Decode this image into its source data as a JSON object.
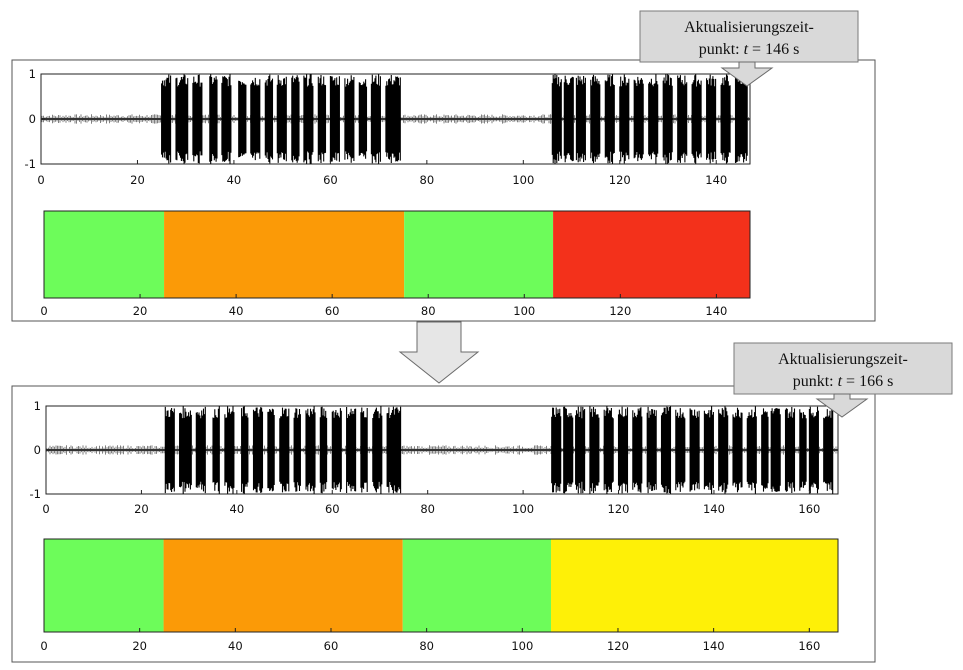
{
  "chart_data": [
    {
      "type": "line",
      "title": "",
      "xlabel": "",
      "ylabel": "",
      "xlim": [
        0,
        147
      ],
      "ylim": [
        -1,
        1
      ],
      "xticks": [
        "0",
        "20",
        "40",
        "60",
        "80",
        "100",
        "120",
        "140"
      ],
      "yticks": [
        "1",
        "0",
        "-1"
      ],
      "signal_end": 147,
      "bursts": [
        [
          25,
          27
        ],
        [
          28,
          30.5
        ],
        [
          31.5,
          33.5
        ],
        [
          35,
          36.5
        ],
        [
          37.5,
          39.5
        ],
        [
          41,
          42.5
        ],
        [
          43.5,
          45.5
        ],
        [
          46.5,
          48
        ],
        [
          49,
          51
        ],
        [
          52,
          53.5
        ],
        [
          54.5,
          56.5
        ],
        [
          57.5,
          59
        ],
        [
          60,
          62
        ],
        [
          63,
          65
        ],
        [
          66,
          67.5
        ],
        [
          68.5,
          70.5
        ],
        [
          71.5,
          74.5
        ],
        [
          106,
          108
        ],
        [
          108.5,
          110.5
        ],
        [
          111,
          113
        ],
        [
          114,
          116
        ],
        [
          117,
          119
        ],
        [
          120,
          122
        ],
        [
          123,
          125
        ],
        [
          126,
          128
        ],
        [
          129,
          131
        ],
        [
          132,
          134
        ],
        [
          135,
          137
        ],
        [
          138,
          140
        ],
        [
          141,
          143
        ],
        [
          144,
          146.5
        ]
      ],
      "colors": {
        "signal": "#000000",
        "noise": "#808080"
      }
    },
    {
      "type": "bar",
      "title": "",
      "xlabel": "",
      "ylabel": "",
      "xlim": [
        0,
        147
      ],
      "xticks": [
        "0",
        "20",
        "40",
        "60",
        "80",
        "100",
        "120",
        "140"
      ],
      "segments": [
        {
          "start": 0,
          "end": 25,
          "color": "#6dfc5a"
        },
        {
          "start": 25,
          "end": 75,
          "color": "#fb9a07"
        },
        {
          "start": 75,
          "end": 106,
          "color": "#6dfc5a"
        },
        {
          "start": 106,
          "end": 147,
          "color": "#f3311b"
        }
      ]
    },
    {
      "type": "line",
      "title": "",
      "xlabel": "",
      "ylabel": "",
      "xlim": [
        0,
        166
      ],
      "ylim": [
        -1,
        1
      ],
      "xticks": [
        "0",
        "20",
        "40",
        "60",
        "80",
        "100",
        "120",
        "140",
        "160"
      ],
      "yticks": [
        "1",
        "0",
        "-1"
      ],
      "signal_end": 166,
      "bursts": [
        [
          25,
          27
        ],
        [
          28,
          30.5
        ],
        [
          31.5,
          33.5
        ],
        [
          35,
          36.5
        ],
        [
          37.5,
          39.5
        ],
        [
          41,
          42.5
        ],
        [
          43.5,
          45.5
        ],
        [
          46.5,
          48
        ],
        [
          49,
          51
        ],
        [
          52,
          53.5
        ],
        [
          54.5,
          56.5
        ],
        [
          57.5,
          59
        ],
        [
          60,
          62
        ],
        [
          63,
          65
        ],
        [
          66,
          67.5
        ],
        [
          68.5,
          70.5
        ],
        [
          71.5,
          74.5
        ],
        [
          106,
          108
        ],
        [
          108.5,
          110.5
        ],
        [
          111,
          113
        ],
        [
          114,
          116
        ],
        [
          117,
          119
        ],
        [
          120,
          122
        ],
        [
          123,
          125
        ],
        [
          126,
          128
        ],
        [
          129,
          131
        ],
        [
          132,
          134
        ],
        [
          135,
          137
        ],
        [
          138,
          140
        ],
        [
          141,
          143
        ],
        [
          144,
          146
        ],
        [
          147,
          149
        ],
        [
          150,
          151.5
        ],
        [
          152,
          154
        ],
        [
          155,
          157
        ],
        [
          158,
          159.5
        ],
        [
          160,
          162
        ],
        [
          163,
          165
        ]
      ],
      "colors": {
        "signal": "#000000",
        "noise": "#808080"
      }
    },
    {
      "type": "bar",
      "title": "",
      "xlabel": "",
      "ylabel": "",
      "xlim": [
        0,
        166
      ],
      "xticks": [
        "0",
        "20",
        "40",
        "60",
        "80",
        "100",
        "120",
        "140",
        "160"
      ],
      "segments": [
        {
          "start": 0,
          "end": 25,
          "color": "#6dfc5a"
        },
        {
          "start": 25,
          "end": 75,
          "color": "#fb9a07"
        },
        {
          "start": 75,
          "end": 106,
          "color": "#6dfc5a"
        },
        {
          "start": 106,
          "end": 166,
          "color": "#fef007"
        }
      ]
    }
  ],
  "callouts": [
    {
      "line1": "Aktualisierungszeit-",
      "line2_prefix": "punkt: ",
      "variable": "t",
      "line2_suffix": " = 146 s"
    },
    {
      "line1": "Aktualisierungszeit-",
      "line2_prefix": "punkt: ",
      "variable": "t",
      "line2_suffix": " = 166 s"
    }
  ],
  "colors": {
    "callout_fill": "#d9d9d9",
    "arrow_fill": "#e6e6e6",
    "frame": "#555555"
  }
}
